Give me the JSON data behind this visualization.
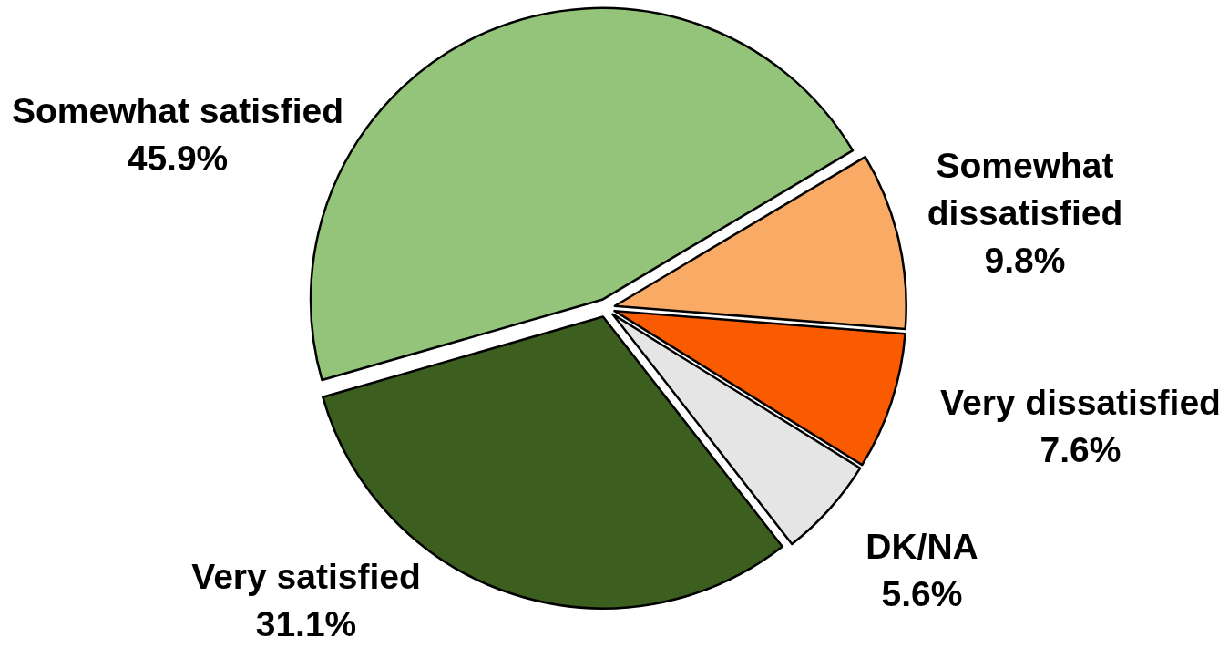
{
  "chart_data": {
    "type": "pie",
    "categories": [
      "Somewhat satisfied",
      "Somewhat dissatisfied",
      "Very dissatisfied",
      "DK/NA",
      "Very satisfied"
    ],
    "values": [
      45.9,
      9.8,
      7.6,
      5.6,
      31.1
    ],
    "colors": [
      "#93c47a",
      "#f9ab66",
      "#fa5a00",
      "#e5e5e5",
      "#3c5e1e"
    ],
    "value_labels": [
      "45.9%",
      "9.8%",
      "7.6%",
      "5.6%",
      "31.1%"
    ]
  }
}
